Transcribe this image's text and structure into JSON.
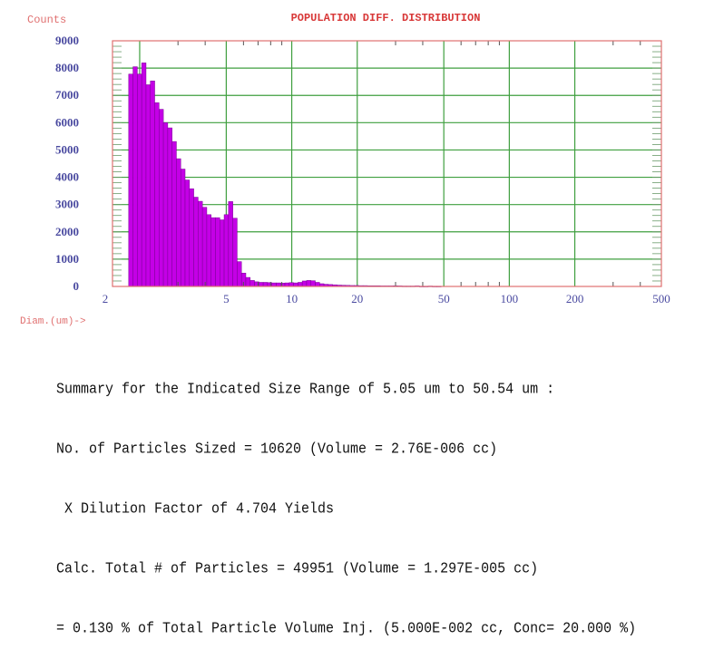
{
  "chart_data": {
    "type": "bar",
    "title": "POPULATION DIFF. DISTRIBUTION",
    "ylabel": "Counts",
    "xlabel": "Diam.(um)->",
    "x_scale": "log",
    "xlim": [
      1.5,
      500
    ],
    "ylim": [
      0,
      9000
    ],
    "grid": true,
    "x_ticks": [
      2,
      5,
      10,
      20,
      50,
      100,
      200,
      500
    ],
    "x_tick_labels": [
      "2",
      "5",
      "10",
      "20",
      "50",
      "100",
      "200",
      "500"
    ],
    "x_minor_ticks": [
      3,
      4,
      6,
      7,
      8,
      9,
      30,
      40,
      60,
      70,
      80,
      90,
      300,
      400
    ],
    "y_ticks": [
      0,
      1000,
      2000,
      3000,
      4000,
      5000,
      6000,
      7000,
      8000,
      9000
    ],
    "y_tick_labels": [
      "0",
      "1000",
      "2000",
      "3000",
      "4000",
      "5000",
      "6000",
      "7000",
      "8000",
      "9000"
    ],
    "bin_start": 1.78,
    "bin_ratio": 1.047,
    "values": [
      7780,
      8050,
      7780,
      8190,
      7390,
      7530,
      6730,
      6490,
      6000,
      5810,
      5310,
      4680,
      4300,
      3900,
      3580,
      3270,
      3120,
      2900,
      2630,
      2520,
      2520,
      2440,
      2630,
      3110,
      2500,
      910,
      490,
      330,
      220,
      170,
      150,
      150,
      140,
      130,
      130,
      120,
      130,
      140,
      130,
      150,
      200,
      220,
      210,
      150,
      100,
      80,
      70,
      60,
      50,
      45,
      40,
      35,
      35,
      30,
      30,
      25,
      25,
      25,
      20,
      20,
      20,
      25,
      20,
      15,
      15,
      15,
      20,
      10,
      10,
      15,
      10,
      10
    ],
    "colors": {
      "bar": "#c400e6",
      "bar_edge": "#7a0096",
      "grid": "#3f9f3f",
      "frame": "#e07070",
      "tick_label": "#4a4aa0",
      "title": "#d83838"
    }
  },
  "summary": {
    "lines": [
      "Summary for the Indicated Size Range of 5.05 um to 50.54 um :",
      "No. of Particles Sized = 10620 (Volume = 2.76E-006 cc)",
      " X Dilution Factor of 4.704 Yields",
      "Calc. Total # of Particles = 49951 (Volume = 1.297E-005 cc)",
      "= 0.130 % of Total Particle Volume Inj. (5.000E-002 cc, Conc= 20.000 %)"
    ]
  }
}
